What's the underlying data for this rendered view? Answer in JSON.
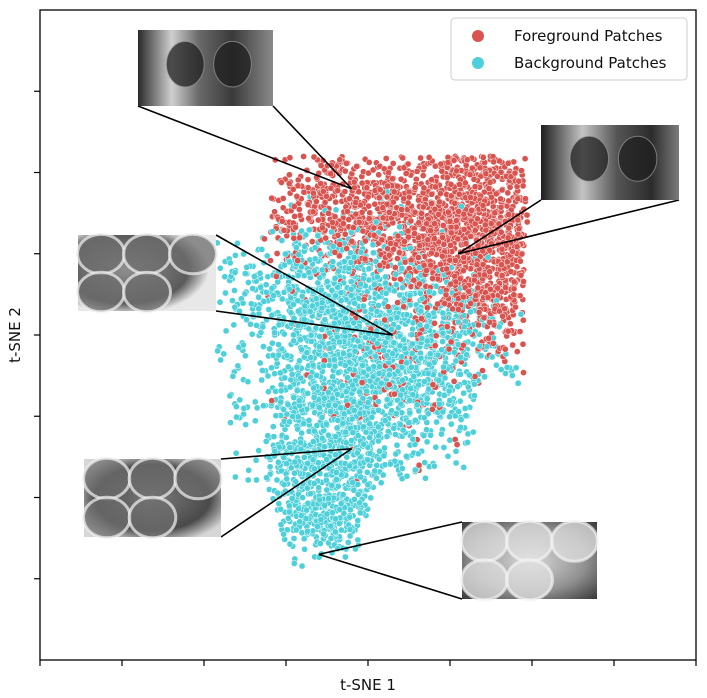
{
  "chart_data": {
    "type": "scatter",
    "title": "",
    "xlabel": "t-SNE 1",
    "ylabel": "t-SNE 2",
    "xlim": [
      0,
      8
    ],
    "ylim": [
      0,
      8
    ],
    "xticks": [
      0,
      1,
      2,
      3,
      4,
      5,
      6,
      7,
      8
    ],
    "yticks": [
      1,
      2,
      3,
      4,
      5,
      6,
      7
    ],
    "tick_labels_shown": false,
    "grid": false,
    "legend_position": "top-right",
    "series": [
      {
        "name": "Foreground Patches",
        "color": "#d9534f",
        "clusters": [
          {
            "cx": 5.1,
            "cy": 5.4,
            "sx": 0.62,
            "sy": 0.6,
            "n": 1300
          },
          {
            "cx": 3.6,
            "cy": 5.6,
            "sx": 0.45,
            "sy": 0.4,
            "n": 380
          },
          {
            "cx": 5.6,
            "cy": 4.6,
            "sx": 0.38,
            "sy": 0.45,
            "n": 260
          },
          {
            "cx": 4.3,
            "cy": 3.6,
            "sx": 0.7,
            "sy": 0.55,
            "n": 120
          }
        ]
      },
      {
        "name": "Background Patches",
        "color": "#4dd0d9",
        "clusters": [
          {
            "cx": 3.9,
            "cy": 3.6,
            "sx": 0.68,
            "sy": 0.7,
            "n": 1500
          },
          {
            "cx": 3.5,
            "cy": 2.4,
            "sx": 0.42,
            "sy": 0.5,
            "n": 520
          },
          {
            "cx": 3.4,
            "cy": 1.7,
            "sx": 0.28,
            "sy": 0.25,
            "n": 160
          },
          {
            "cx": 3.3,
            "cy": 4.6,
            "sx": 0.55,
            "sy": 0.45,
            "n": 380
          },
          {
            "cx": 4.8,
            "cy": 3.8,
            "sx": 0.55,
            "sy": 0.5,
            "n": 300
          }
        ]
      }
    ],
    "annotations": [
      {
        "name": "foreground-top",
        "target": [
          3.8,
          5.8
        ],
        "tone": "fg1"
      },
      {
        "name": "foreground-right",
        "target": [
          5.1,
          5.0
        ],
        "tone": "fg2"
      },
      {
        "name": "background-left",
        "target": [
          4.3,
          4.0
        ],
        "tone": "bg1"
      },
      {
        "name": "background-lower-left",
        "target": [
          3.8,
          2.6
        ],
        "tone": "bg2"
      },
      {
        "name": "background-bottom",
        "target": [
          3.4,
          1.3
        ],
        "tone": "bg3"
      }
    ]
  }
}
